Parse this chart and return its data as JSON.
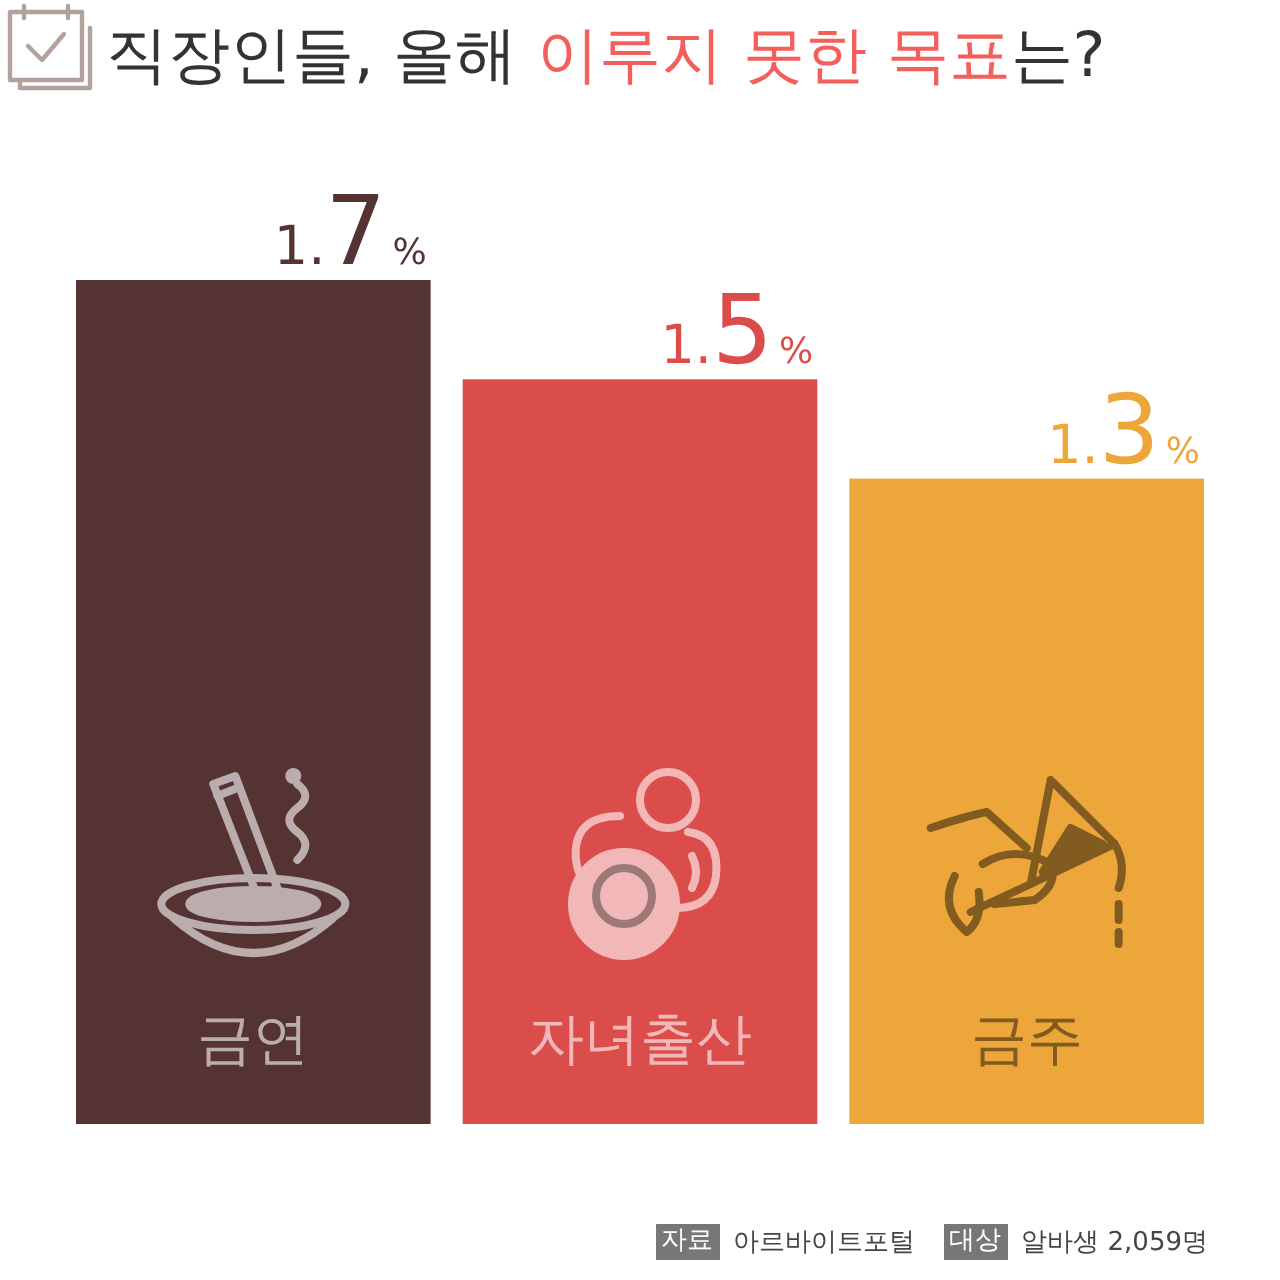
{
  "chart_data": {
    "type": "bar",
    "title": "직장인들, 올해 이루지 못한 목표는?",
    "categories": [
      "금연",
      "자녀출산",
      "금주"
    ],
    "values": [
      1.7,
      1.5,
      1.3
    ],
    "colors": [
      "#553333",
      "#db4d4b",
      "#eca63a"
    ],
    "value_labels": [
      "1.7%",
      "1.5%",
      "1.3%"
    ],
    "annotations": [
      "자료",
      "아르바이트포털",
      "대상",
      "알바생 2,059명"
    ]
  }
}
